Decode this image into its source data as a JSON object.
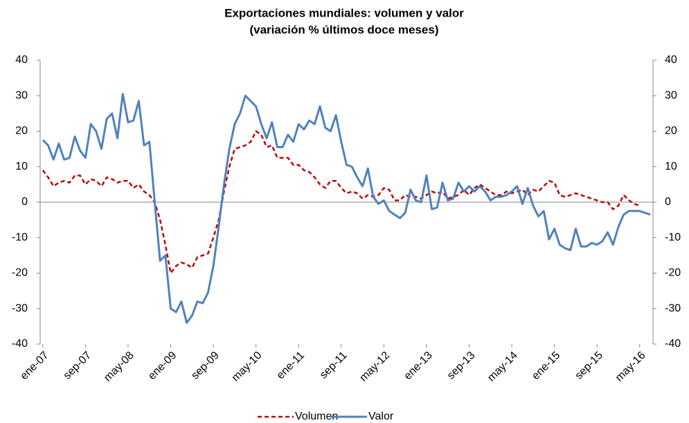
{
  "chart_data": {
    "type": "line",
    "title": "Exportaciones mundiales: volumen y valor",
    "subtitle": "(variación % últimos doce meses)",
    "categories": [
      "ene-07",
      null,
      null,
      null,
      null,
      null,
      null,
      null,
      "sep-07",
      null,
      null,
      null,
      null,
      null,
      null,
      null,
      "may-08",
      null,
      null,
      null,
      null,
      null,
      null,
      null,
      "ene-09",
      null,
      null,
      null,
      null,
      null,
      null,
      null,
      "sep-09",
      null,
      null,
      null,
      null,
      null,
      null,
      null,
      "may-10",
      null,
      null,
      null,
      null,
      null,
      null,
      null,
      "ene-11",
      null,
      null,
      null,
      null,
      null,
      null,
      null,
      "sep-11",
      null,
      null,
      null,
      null,
      null,
      null,
      null,
      "may-12",
      null,
      null,
      null,
      null,
      null,
      null,
      null,
      "ene-13",
      null,
      null,
      null,
      null,
      null,
      null,
      null,
      "sep-13",
      null,
      null,
      null,
      null,
      null,
      null,
      null,
      "may-14",
      null,
      null,
      null,
      null,
      null,
      null,
      null,
      "ene-15",
      null,
      null,
      null,
      null,
      null,
      null,
      null,
      "sep-15",
      null,
      null,
      null,
      null,
      null,
      null,
      null,
      "may-16",
      null,
      null
    ],
    "series": [
      {
        "name": "Volumen",
        "color": "#c00000",
        "dash": true,
        "values": [
          9,
          7,
          4.5,
          5.5,
          6,
          5.5,
          7.5,
          7.5,
          5,
          6.5,
          6,
          4.5,
          7,
          6.5,
          5.5,
          6,
          6,
          4,
          5,
          3,
          2,
          0,
          -5,
          -12,
          -20,
          -18,
          -17,
          -17.5,
          -18.5,
          -15.5,
          -15,
          -14.5,
          -10,
          -5,
          3,
          10,
          15,
          15.5,
          16,
          17,
          20,
          19,
          15.5,
          16,
          12.5,
          12.5,
          12.5,
          10.5,
          10.5,
          9,
          8.5,
          7,
          5,
          4,
          6,
          6,
          4,
          2.5,
          3,
          2.5,
          1,
          2,
          1.5,
          2,
          4,
          3.5,
          0.5,
          0.5,
          2,
          1.5,
          1.5,
          1,
          2,
          3,
          2.5,
          3,
          1,
          1.5,
          2,
          3.5,
          2,
          4,
          5,
          4,
          3,
          2,
          2,
          3,
          2.5,
          3,
          3.5,
          2,
          3.5,
          3,
          4.5,
          6,
          5.5,
          2,
          1.5,
          2,
          2.5,
          2,
          1.5,
          1,
          0.5,
          0,
          0,
          -2,
          -1,
          2,
          0.5,
          -0.5,
          -1,
          null,
          null
        ]
      },
      {
        "name": "Valor",
        "color": "#4f81bd",
        "dash": false,
        "values": [
          17.5,
          16,
          12,
          16.5,
          12,
          12.5,
          18.5,
          14.5,
          12.5,
          22,
          20,
          15,
          23.5,
          25,
          18,
          30.5,
          22.5,
          23,
          28.5,
          16,
          17,
          0,
          -16.5,
          -15,
          -30,
          -31,
          -28,
          -34,
          -32,
          -28,
          -28.5,
          -25.5,
          -18,
          -7,
          5,
          15,
          22,
          25,
          30,
          28.5,
          27,
          22,
          18,
          22.5,
          15.5,
          15.5,
          19,
          17,
          22,
          20.5,
          23,
          22,
          27,
          21,
          20,
          24.5,
          17,
          10.5,
          10,
          7,
          4.5,
          9.5,
          1.5,
          -0.5,
          0.5,
          -2.5,
          -3.5,
          -4.5,
          -3,
          3.5,
          0.5,
          0,
          7.5,
          -2,
          -1.5,
          5.5,
          0.5,
          1,
          5.5,
          3,
          4.5,
          3,
          4.5,
          3,
          0.5,
          1.5,
          1.5,
          2,
          3,
          4.5,
          -0.5,
          4,
          -1,
          -4,
          -2.5,
          -10.5,
          -7.5,
          -12,
          -13,
          -13.5,
          -7.5,
          -12.5,
          -12.5,
          -11.5,
          -12,
          -11,
          -8.5,
          -12,
          -7,
          -3.5,
          -2.5,
          -2.5,
          -2.5,
          -3,
          -3.5
        ]
      }
    ],
    "ylim": [
      -40,
      40
    ],
    "yticks": [
      -40,
      -30,
      -20,
      -10,
      0,
      10,
      20,
      30,
      40
    ],
    "y2lim": [
      -40,
      40
    ],
    "y2ticks": [
      -40,
      -30,
      -20,
      -10,
      0,
      10,
      20,
      30,
      40
    ],
    "legend": "bottom"
  }
}
